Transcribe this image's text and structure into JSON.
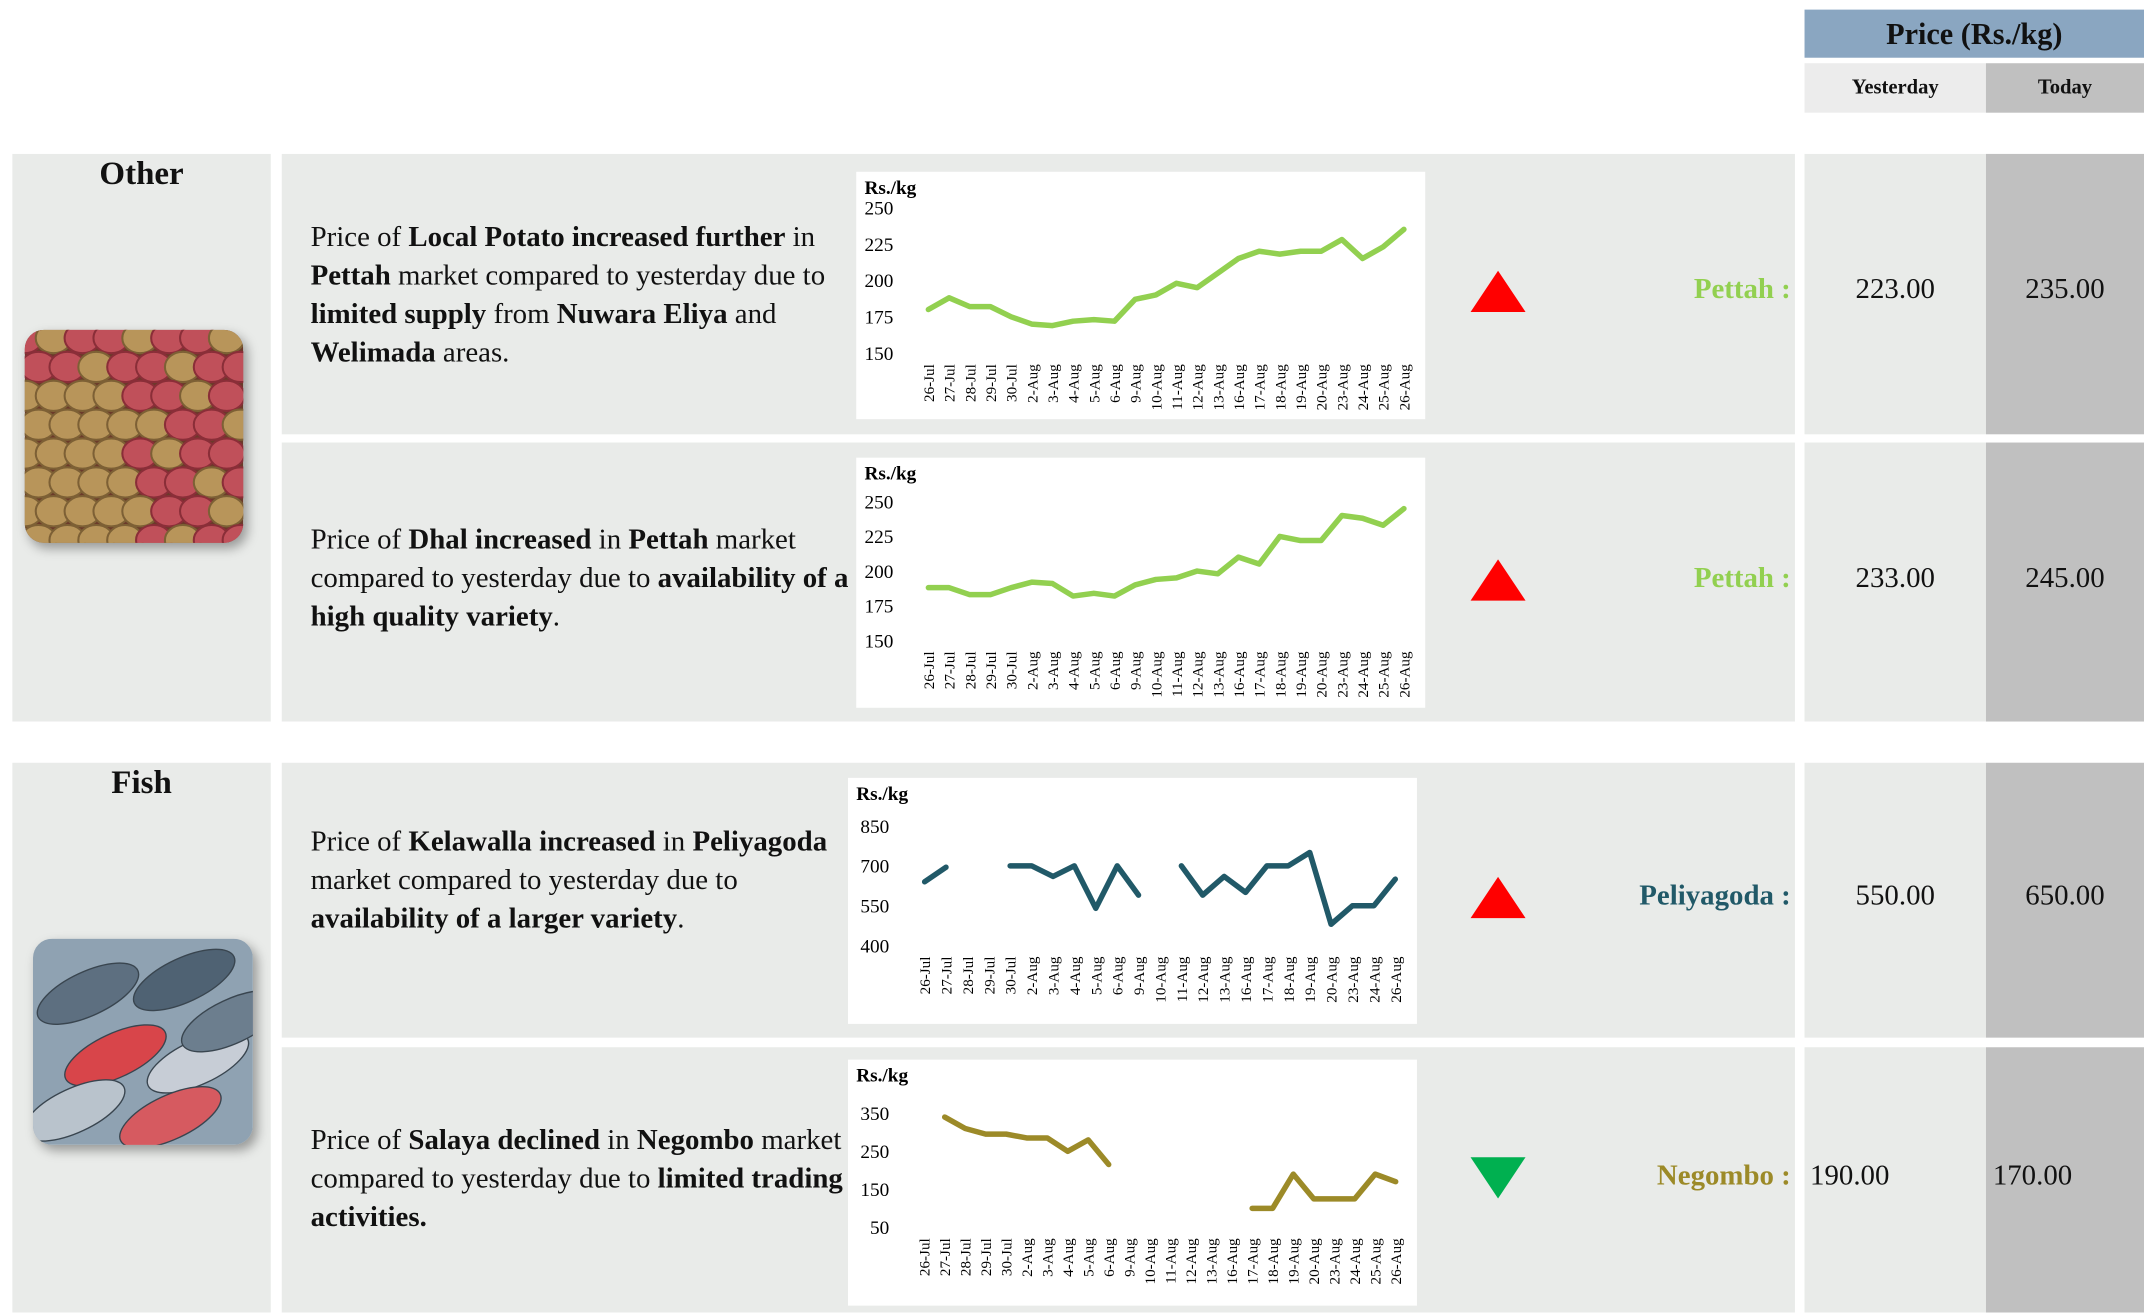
{
  "header": {
    "title": "Price (Rs./kg)",
    "yesterday": "Yesterday",
    "today": "Today"
  },
  "sections": [
    {
      "name": "Other",
      "rows": [
        {
          "description": [
            {
              "text": "Price of ",
              "bold": false
            },
            {
              "text": "Local Potato increased further",
              "bold": true
            },
            {
              "text": " in ",
              "bold": false
            },
            {
              "text": "Pettah",
              "bold": true
            },
            {
              "text": " market compared to yesterday due to ",
              "bold": false
            },
            {
              "text": "limited supply",
              "bold": true
            },
            {
              "text": " from ",
              "bold": false
            },
            {
              "text": "Nuwara Eliya",
              "bold": true
            },
            {
              "text": " and ",
              "bold": false
            },
            {
              "text": "Welimada",
              "bold": true
            },
            {
              "text": " areas.",
              "bold": false
            }
          ],
          "chart_data": {
            "type": "line",
            "ylabel": "Rs./kg",
            "color": "#92d050",
            "categories": [
              "26-Jul",
              "27-Jul",
              "28-Jul",
              "29-Jul",
              "30-Jul",
              "2-Aug",
              "3-Aug",
              "4-Aug",
              "5-Aug",
              "6-Aug",
              "9-Aug",
              "10-Aug",
              "11-Aug",
              "12-Aug",
              "13-Aug",
              "16-Aug",
              "17-Aug",
              "18-Aug",
              "19-Aug",
              "20-Aug",
              "23-Aug",
              "24-Aug",
              "25-Aug",
              "26-Aug"
            ],
            "values": [
              180,
              188,
              182,
              182,
              175,
              170,
              169,
              172,
              173,
              172,
              187,
              190,
              198,
              195,
              205,
              215,
              220,
              218,
              220,
              220,
              228,
              215,
              223,
              235
            ],
            "ylim": [
              150,
              250
            ],
            "yticks": [
              150,
              175,
              200,
              225,
              250
            ]
          },
          "direction": "up",
          "market": "Pettah :",
          "market_color": "#92d050",
          "yesterday": "223.00",
          "today": "235.00"
        },
        {
          "description": [
            {
              "text": "Price of ",
              "bold": false
            },
            {
              "text": "Dhal increased",
              "bold": true
            },
            {
              "text": " in ",
              "bold": false
            },
            {
              "text": "Pettah",
              "bold": true
            },
            {
              "text": " market compared to yesterday due to ",
              "bold": false
            },
            {
              "text": "availability of a high quality variety",
              "bold": true
            },
            {
              "text": ".",
              "bold": false
            }
          ],
          "chart_data": {
            "type": "line",
            "ylabel": "Rs./kg",
            "color": "#92d050",
            "categories": [
              "26-Jul",
              "27-Jul",
              "28-Jul",
              "29-Jul",
              "30-Jul",
              "2-Aug",
              "3-Aug",
              "4-Aug",
              "5-Aug",
              "6-Aug",
              "9-Aug",
              "10-Aug",
              "11-Aug",
              "12-Aug",
              "13-Aug",
              "16-Aug",
              "17-Aug",
              "18-Aug",
              "19-Aug",
              "20-Aug",
              "23-Aug",
              "24-Aug",
              "25-Aug",
              "26-Aug"
            ],
            "values": [
              188,
              188,
              183,
              183,
              188,
              192,
              191,
              182,
              184,
              182,
              190,
              194,
              195,
              200,
              198,
              210,
              205,
              225,
              222,
              222,
              240,
              238,
              233,
              245
            ],
            "ylim": [
              150,
              250
            ],
            "yticks": [
              150,
              175,
              200,
              225,
              250
            ]
          },
          "direction": "up",
          "market": "Pettah :",
          "market_color": "#92d050",
          "yesterday": "233.00",
          "today": "245.00"
        }
      ]
    },
    {
      "name": "Fish",
      "rows": [
        {
          "description": [
            {
              "text": "Price of ",
              "bold": false
            },
            {
              "text": "Kelawalla increased",
              "bold": true
            },
            {
              "text": " in ",
              "bold": false
            },
            {
              "text": "Peliyagoda",
              "bold": true
            },
            {
              "text": " market compared to yesterday due to ",
              "bold": false
            },
            {
              "text": "availability of a larger variety",
              "bold": true
            },
            {
              "text": ".",
              "bold": false
            }
          ],
          "chart_data": {
            "type": "line",
            "ylabel": "Rs./kg",
            "color": "#215968",
            "categories": [
              "26-Jul",
              "27-Jul",
              "28-Jul",
              "29-Jul",
              "30-Jul",
              "2-Aug",
              "3-Aug",
              "4-Aug",
              "5-Aug",
              "6-Aug",
              "9-Aug",
              "10-Aug",
              "11-Aug",
              "12-Aug",
              "13-Aug",
              "16-Aug",
              "17-Aug",
              "18-Aug",
              "19-Aug",
              "20-Aug",
              "23-Aug",
              "24-Aug",
              "26-Aug"
            ],
            "values": [
              640,
              695,
              null,
              null,
              700,
              700,
              660,
              700,
              540,
              700,
              590,
              null,
              700,
              590,
              660,
              600,
              700,
              700,
              750,
              480,
              550,
              550,
              650
            ],
            "ylim": [
              400,
              850
            ],
            "yticks": [
              400,
              550,
              700,
              850
            ]
          },
          "direction": "up",
          "market": "Peliyagoda :",
          "market_color": "#215968",
          "yesterday": "550.00",
          "today": "650.00"
        },
        {
          "description": [
            {
              "text": "Price of ",
              "bold": false
            },
            {
              "text": "Salaya declined",
              "bold": true
            },
            {
              "text": " in ",
              "bold": false
            },
            {
              "text": "Negombo",
              "bold": true
            },
            {
              "text": " market compared to yesterday due to ",
              "bold": false
            },
            {
              "text": "limited trading activities.",
              "bold": true
            }
          ],
          "chart_data": {
            "type": "line",
            "ylabel": "Rs./kg",
            "color": "#9c8a28",
            "categories": [
              "26-Jul",
              "27-Jul",
              "28-Jul",
              "29-Jul",
              "30-Jul",
              "2-Aug",
              "3-Aug",
              "4-Aug",
              "5-Aug",
              "6-Aug",
              "9-Aug",
              "10-Aug",
              "11-Aug",
              "12-Aug",
              "13-Aug",
              "16-Aug",
              "17-Aug",
              "18-Aug",
              "19-Aug",
              "20-Aug",
              "23-Aug",
              "24-Aug",
              "25-Aug",
              "26-Aug"
            ],
            "values": [
              null,
              340,
              310,
              295,
              295,
              285,
              285,
              250,
              280,
              215,
              null,
              null,
              null,
              null,
              null,
              null,
              100,
              100,
              190,
              125,
              125,
              125,
              190,
              170
            ],
            "ylim": [
              50,
              350
            ],
            "yticks": [
              50,
              150,
              250,
              350
            ]
          },
          "direction": "down",
          "market": "Negombo :",
          "market_color": "#9c8a28",
          "yesterday": "190.00",
          "today": "170.00"
        }
      ]
    }
  ]
}
